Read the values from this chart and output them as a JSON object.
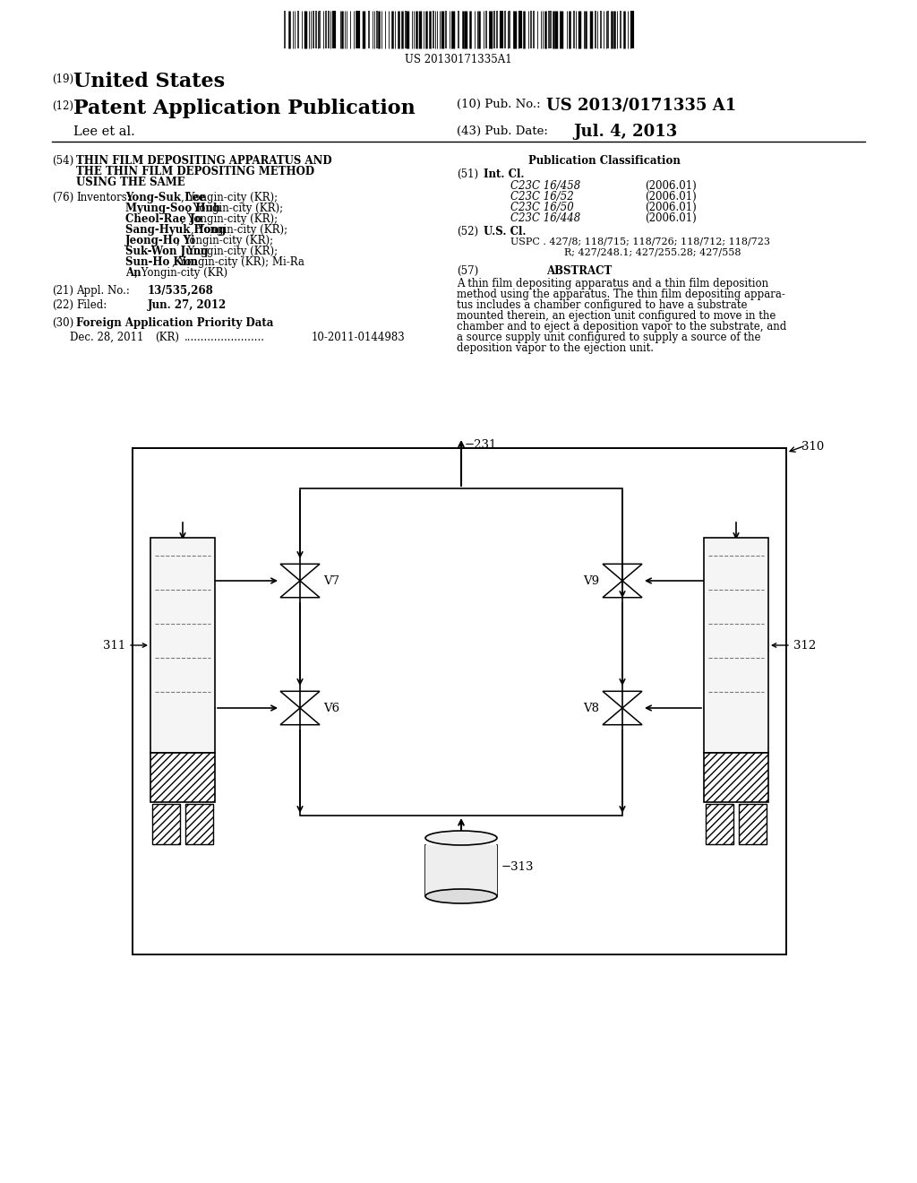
{
  "bg_color": "#ffffff",
  "barcode_text": "US 20130171335A1",
  "pub_no_full": "US 2013/0171335 A1",
  "author": "Lee et al.",
  "pub_date": "Jul. 4, 2013",
  "field54_title_lines": [
    "THIN FILM DEPOSITING APPARATUS AND",
    "THE THIN FILM DEPOSITING METHOD",
    "USING THE SAME"
  ],
  "pub_class_title": "Publication Classification",
  "int_cl_entries": [
    [
      "C23C 16/458",
      "(2006.01)"
    ],
    [
      "C23C 16/52",
      "(2006.01)"
    ],
    [
      "C23C 16/50",
      "(2006.01)"
    ],
    [
      "C23C 16/448",
      "(2006.01)"
    ]
  ],
  "uspc_line1": "USPC . 427/8; 118/715; 118/726; 118/712; 118/723",
  "uspc_line2": "R; 427/248.1; 427/255.28; 427/558",
  "inventors_lines": [
    [
      "Yong-Suk Lee",
      ", Yongin-city (KR);"
    ],
    [
      "Myung-Soo Huh",
      ", Yongin-city (KR);"
    ],
    [
      "Cheol-Rae Jo",
      ", Yongin-city (KR);"
    ],
    [
      "Sang-Hyuk Hong",
      ", Yongin-city (KR);"
    ],
    [
      "Jeong-Ho Yi",
      ", Yongin-city (KR);"
    ],
    [
      "Suk-Won Jung",
      ", Yongin-city (KR);"
    ],
    [
      "Sun-Ho Kim",
      ", Yongin-city (KR); Mi-Ra"
    ],
    [
      "An",
      ", Yongin-city (KR)"
    ]
  ],
  "field21_val": "13/535,268",
  "field22_val": "Jun. 27, 2012",
  "foreign_line": "Dec. 28, 2011    (KR) ........................  10-2011-0144983",
  "abstract_lines": [
    "A thin film depositing apparatus and a thin film deposition",
    "method using the apparatus. The thin film depositing appara-",
    "tus includes a chamber configured to have a substrate",
    "mounted therein, an ejection unit configured to move in the",
    "chamber and to eject a deposition vapor to the substrate, and",
    "a source supply unit configured to supply a source of the",
    "deposition vapor to the ejection unit."
  ]
}
